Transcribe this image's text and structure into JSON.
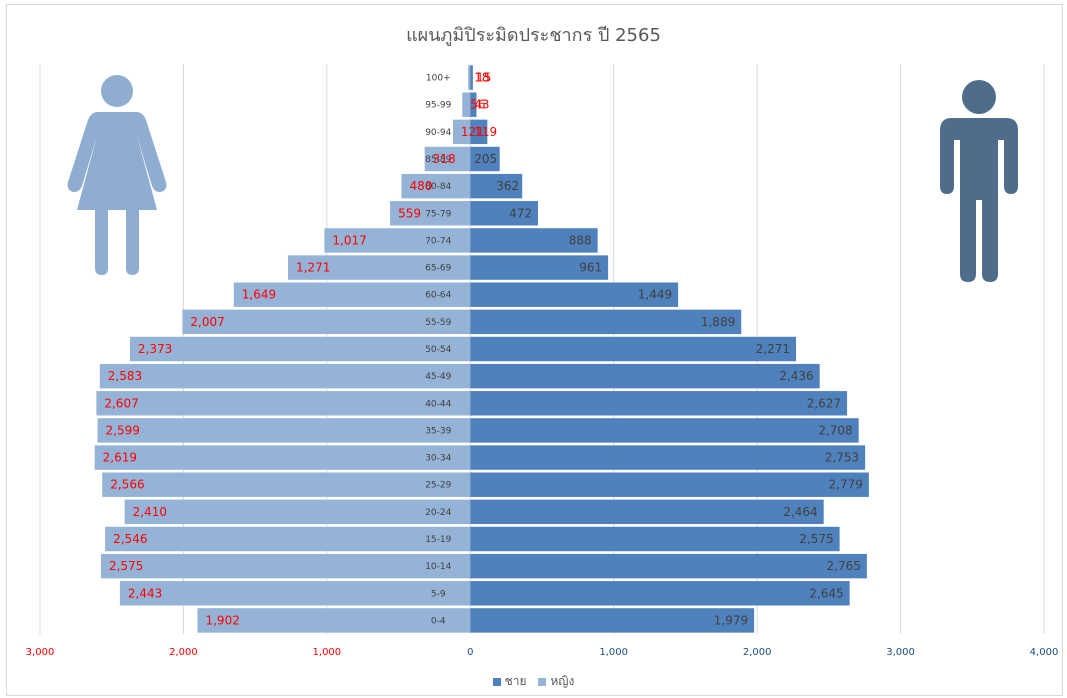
{
  "chart_data": {
    "type": "bar",
    "orientation": "horizontal",
    "title": "แผนภูมิปิระมิดประชากร ปี 2565",
    "categories": [
      "0-4",
      "5-9",
      "10-14",
      "15-19",
      "20-24",
      "25-29",
      "30-34",
      "35-39",
      "40-44",
      "45-49",
      "50-54",
      "55-59",
      "60-64",
      "65-69",
      "70-74",
      "75-79",
      "80-84",
      "85-89",
      "90-94",
      "95-99",
      "100+"
    ],
    "category_labels": [
      "0-4",
      "5-9",
      "10-14",
      "15-19",
      "20-24",
      "25-29",
      "30-34",
      "35-39",
      "40-44",
      "45-49",
      "50-54",
      "55-59",
      "60-64",
      "65-69",
      "70-74",
      "75-79",
      "80-84",
      "85-89",
      "90-94",
      "95-99",
      "100+"
    ],
    "series": [
      {
        "name": "ชาย",
        "color": "#4f81bd",
        "values": [
          1979,
          2645,
          2765,
          2575,
          2464,
          2779,
          2753,
          2708,
          2627,
          2436,
          2271,
          1889,
          1449,
          961,
          888,
          472,
          362,
          205,
          119,
          43,
          18
        ],
        "value_labels": [
          "1,979",
          "2,645",
          "2,765",
          "2,575",
          "2,464",
          "2,779",
          "2,753",
          "2,708",
          "2,627",
          "2,436",
          "2,271",
          "1,889",
          "1,449",
          "961",
          "888",
          "472",
          "362",
          "205",
          "119",
          "43",
          "18"
        ]
      },
      {
        "name": "หญิง",
        "color": "#95b3d7",
        "values": [
          1902,
          2443,
          2575,
          2546,
          2410,
          2566,
          2619,
          2599,
          2607,
          2583,
          2373,
          2007,
          1649,
          1271,
          1017,
          559,
          480,
          318,
          121,
          56,
          15
        ],
        "value_labels": [
          "1,902",
          "2,443",
          "2,575",
          "2,546",
          "2,410",
          "2,566",
          "2,619",
          "2,599",
          "2,607",
          "2,583",
          "2,373",
          "2,007",
          "1,649",
          "1,271",
          "1,017",
          "559",
          "480",
          "318",
          "121",
          "56",
          "15"
        ]
      }
    ],
    "x_ticks": [
      -3000,
      -2000,
      -1000,
      0,
      1000,
      2000,
      3000,
      4000
    ],
    "x_tick_labels": [
      "3,000",
      "2,000",
      "1,000",
      "0",
      "1,000",
      "2,000",
      "3,000",
      "4,000"
    ],
    "xlim": [
      -3000,
      4000
    ],
    "grid": true,
    "legend_position": "bottom"
  },
  "icons": {
    "female": "female-person-icon",
    "male": "male-person-icon"
  },
  "colors": {
    "female_icon": "#8eadd0",
    "male_icon": "#4f6d8a",
    "grid": "#d9d9d9"
  }
}
